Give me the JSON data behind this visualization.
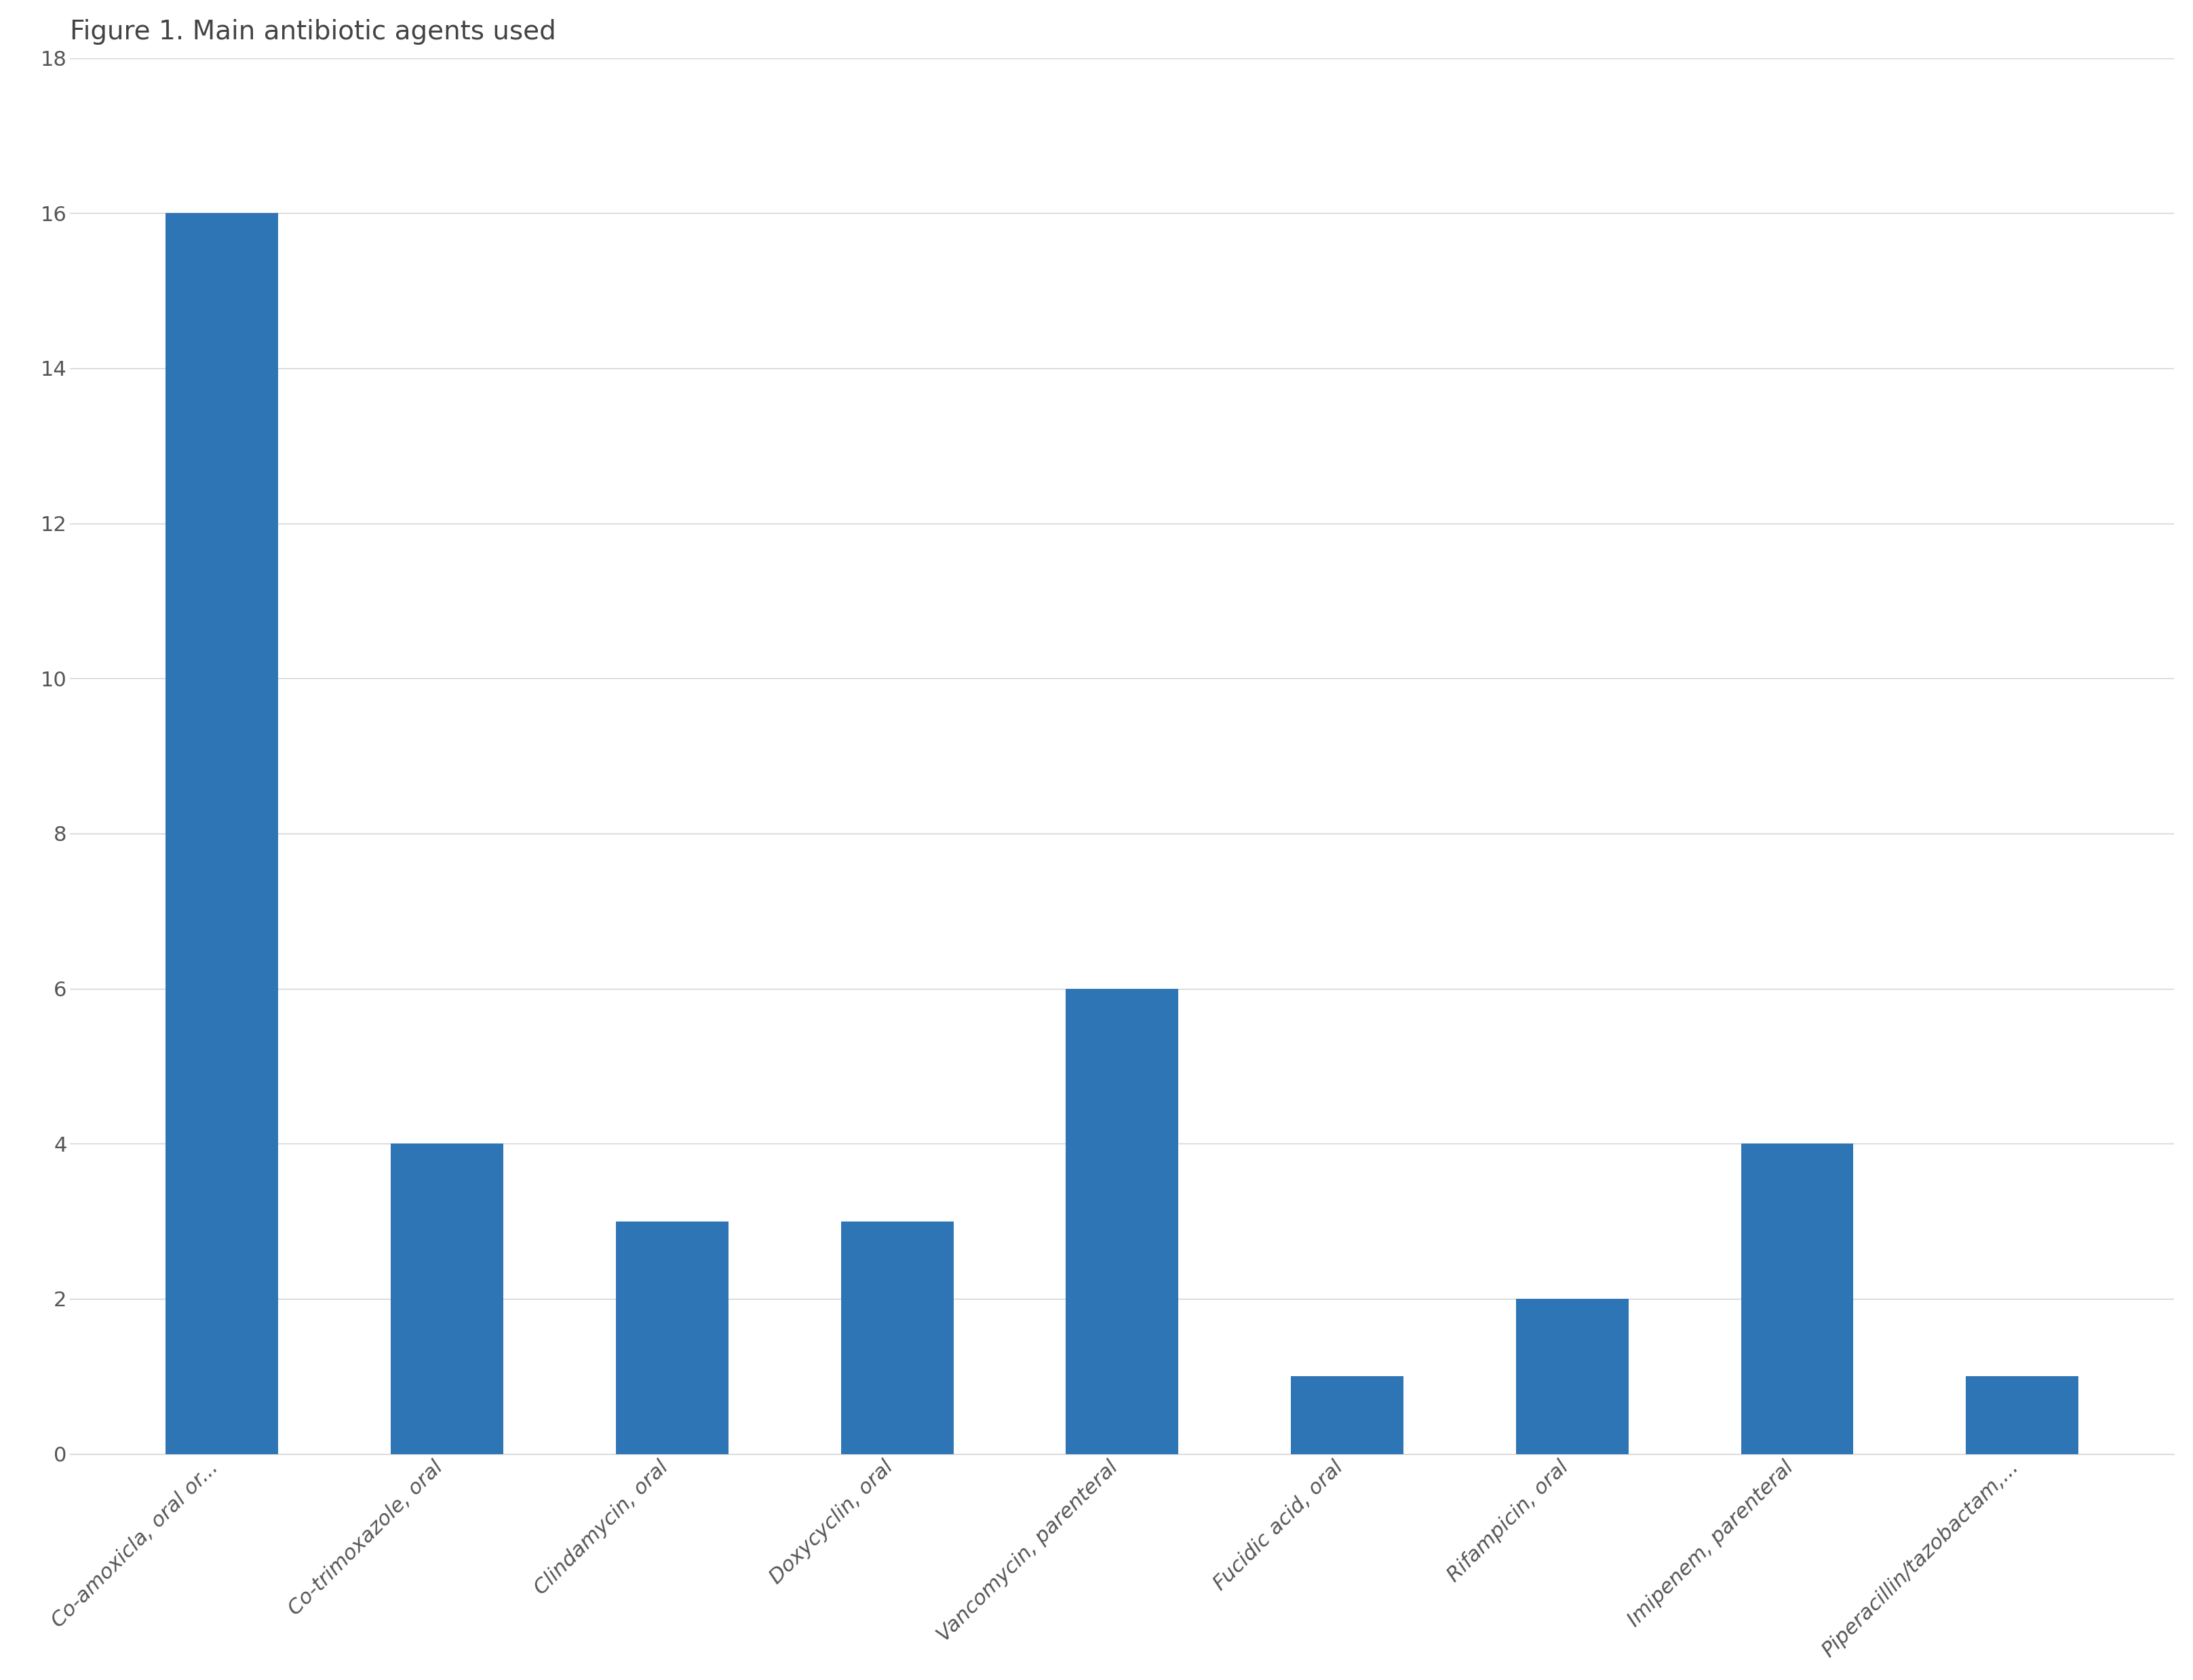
{
  "title": "Figure 1. Main antibiotic agents used",
  "categories": [
    "Co-amoxicla, oral or...",
    "Co-trimoxazole, oral",
    "Clindamycin, oral",
    "Doxycyclin, oral",
    "Vancomycin, parenteral",
    "Fucidic acid, oral",
    "Rifampicin, oral",
    "Imipenem, parenteral",
    "Piperacillin/tazobactam,..."
  ],
  "values": [
    16,
    4,
    3,
    3,
    6,
    1,
    2,
    4,
    1
  ],
  "bar_color": "#2E75B6",
  "ylim": [
    0,
    18
  ],
  "yticks": [
    0,
    2,
    4,
    6,
    8,
    10,
    12,
    14,
    16,
    18
  ],
  "background_color": "#ffffff",
  "plot_area_color": "#ffffff",
  "title_fontsize": 28,
  "tick_fontsize": 22,
  "grid_color": "#d0d0d0",
  "border_color": "#d0d0d0"
}
